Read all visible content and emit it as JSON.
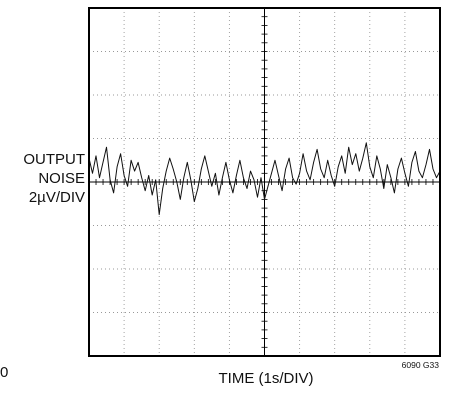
{
  "chart_data": {
    "type": "line",
    "ylabel_lines": [
      "OUTPUT",
      "NOISE",
      "2µV/DIV"
    ],
    "xlabel": "TIME (1s/DIV)",
    "corner_label": "0",
    "figure_id": "6090 G33",
    "x_divisions": 10,
    "y_divisions": 8,
    "xlim": [
      0,
      10
    ],
    "ylim": [
      -8,
      8
    ],
    "grid": true,
    "series": [
      {
        "x": [
          0,
          0.1,
          0.2,
          0.3,
          0.4,
          0.5,
          0.6,
          0.7,
          0.8,
          0.9,
          1.0,
          1.1,
          1.2,
          1.3,
          1.4,
          1.5,
          1.6,
          1.7,
          1.8,
          1.9,
          2.0,
          2.1,
          2.2,
          2.3,
          2.4,
          2.5,
          2.6,
          2.7,
          2.8,
          2.9,
          3.0,
          3.1,
          3.2,
          3.3,
          3.4,
          3.5,
          3.6,
          3.7,
          3.8,
          3.9,
          4.0,
          4.1,
          4.2,
          4.3,
          4.4,
          4.5,
          4.6,
          4.7,
          4.8,
          4.9,
          5.0,
          5.1,
          5.2,
          5.3,
          5.4,
          5.5,
          5.6,
          5.7,
          5.8,
          5.9,
          6.0,
          6.1,
          6.2,
          6.3,
          6.4,
          6.5,
          6.6,
          6.7,
          6.8,
          6.9,
          7.0,
          7.1,
          7.2,
          7.3,
          7.4,
          7.5,
          7.6,
          7.7,
          7.8,
          7.9,
          8.0,
          8.1,
          8.2,
          8.3,
          8.4,
          8.5,
          8.6,
          8.7,
          8.8,
          8.9,
          9.0,
          9.1,
          9.2,
          9.3,
          9.4,
          9.5,
          9.6,
          9.7,
          9.8,
          9.9,
          10.0
        ],
        "values": [
          1.1,
          0.4,
          1.2,
          0.2,
          0.9,
          1.6,
          0.1,
          -0.5,
          0.7,
          1.3,
          0.3,
          -0.2,
          1.0,
          0.5,
          0.9,
          0.2,
          -0.4,
          0.3,
          -0.6,
          0.1,
          -1.5,
          -0.3,
          0.5,
          1.1,
          0.6,
          0.0,
          -0.8,
          0.2,
          0.9,
          0.1,
          -0.9,
          -0.3,
          0.6,
          1.2,
          0.5,
          -0.2,
          0.4,
          -0.6,
          0.2,
          0.9,
          0.1,
          -0.5,
          0.3,
          1.0,
          0.2,
          -0.3,
          0.5,
          0.1,
          -0.7,
          0.2,
          -0.8,
          -0.2,
          0.4,
          1.0,
          0.3,
          -0.4,
          0.6,
          1.1,
          0.2,
          -0.1,
          0.4,
          1.3,
          0.5,
          0.1,
          0.9,
          1.5,
          0.6,
          0.2,
          1.0,
          0.3,
          -0.2,
          0.7,
          1.2,
          0.4,
          1.6,
          0.8,
          1.3,
          0.5,
          1.1,
          1.8,
          0.7,
          0.2,
          1.2,
          0.6,
          -0.3,
          0.8,
          0.2,
          -0.5,
          0.6,
          1.1,
          0.4,
          -0.2,
          0.9,
          1.4,
          0.5,
          0.2,
          0.8,
          1.5,
          0.6,
          0.2,
          0.5
        ]
      }
    ]
  }
}
